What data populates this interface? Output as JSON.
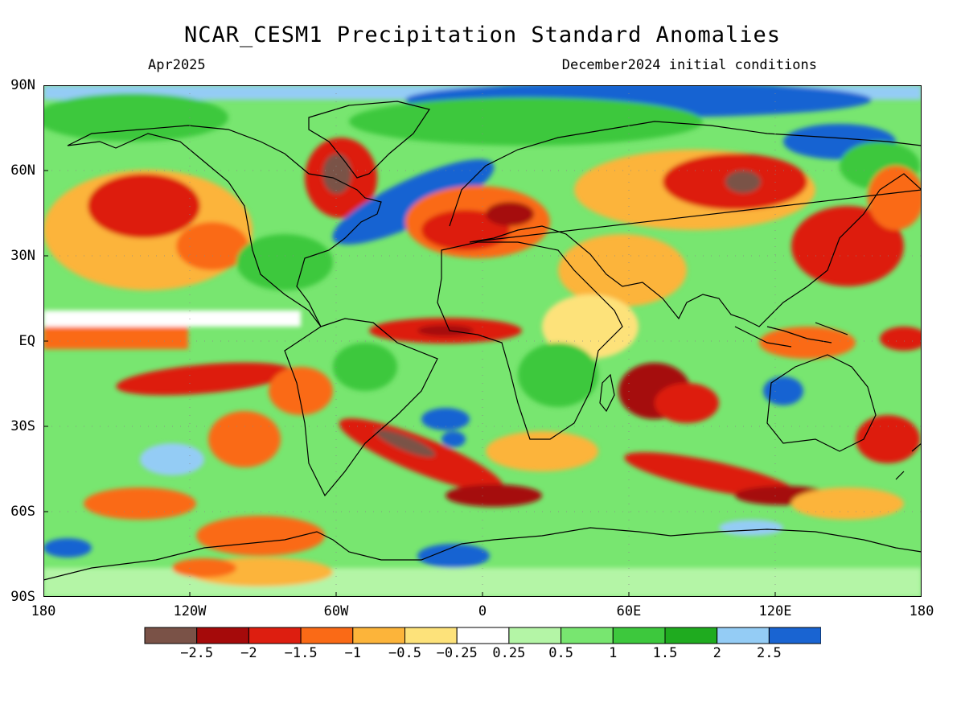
{
  "title": "NCAR_CESM1 Precipitation Standard Anomalies",
  "subtitle_left": "Apr2025",
  "subtitle_right": "December2024 initial conditions",
  "lat_labels": [
    "90N",
    "60N",
    "30N",
    "EQ",
    "30S",
    "60S",
    "90S"
  ],
  "lon_labels": [
    "180",
    "120W",
    "60W",
    "0",
    "60E",
    "120E",
    "180"
  ],
  "colorbar": {
    "colors": [
      "#7a5247",
      "#a50a0a",
      "#dd1e10",
      "#fa6a16",
      "#fcb43a",
      "#fde27a",
      "#ffffff",
      "#b4f5a6",
      "#78e670",
      "#3dc83d",
      "#1fab1f",
      "#94ccf5",
      "#1964d2"
    ],
    "labels": [
      "−2.5",
      "−2",
      "−1.5",
      "−1",
      "−0.5",
      "−0.25",
      "0.25",
      "0.5",
      "1",
      "1.5",
      "2",
      "2.5"
    ]
  }
}
